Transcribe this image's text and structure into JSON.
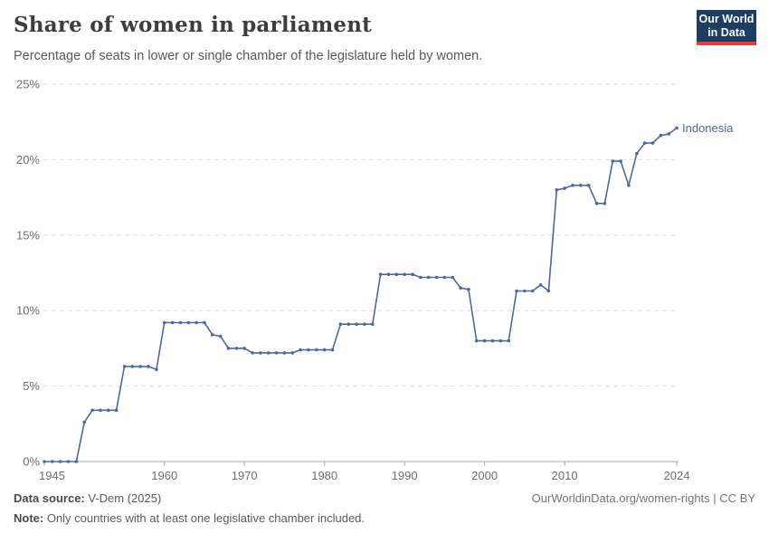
{
  "header": {
    "title": "Share of women in parliament",
    "subtitle": "Percentage of seats in lower or single chamber of the legislature held by women.",
    "logo": {
      "line1": "Our World",
      "line2": "in Data"
    }
  },
  "chart_data": {
    "type": "line",
    "title": "Share of women in parliament",
    "entity_label": "Indonesia",
    "xlabel": "",
    "ylabel": "",
    "xlim": [
      1945,
      2024
    ],
    "ylim": [
      0,
      25
    ],
    "x_ticks": [
      1945,
      1960,
      1970,
      1980,
      1990,
      2000,
      2010,
      2024
    ],
    "y_ticks": [
      0,
      5,
      10,
      15,
      20,
      25
    ],
    "y_tick_suffix": "%",
    "grid": "horizontal-dashed",
    "legend_position": "end-of-line-label",
    "line_color": "#4C6A9C",
    "x": [
      1945,
      1946,
      1947,
      1948,
      1949,
      1950,
      1951,
      1952,
      1953,
      1954,
      1955,
      1956,
      1957,
      1958,
      1959,
      1960,
      1961,
      1962,
      1963,
      1964,
      1965,
      1966,
      1967,
      1968,
      1969,
      1970,
      1971,
      1972,
      1973,
      1974,
      1975,
      1976,
      1977,
      1978,
      1979,
      1980,
      1981,
      1982,
      1983,
      1984,
      1985,
      1986,
      1987,
      1988,
      1989,
      1990,
      1991,
      1992,
      1993,
      1994,
      1995,
      1996,
      1997,
      1998,
      1999,
      2000,
      2001,
      2002,
      2003,
      2004,
      2005,
      2006,
      2007,
      2008,
      2009,
      2010,
      2011,
      2012,
      2013,
      2014,
      2015,
      2016,
      2017,
      2018,
      2019,
      2020,
      2021,
      2022,
      2023,
      2024
    ],
    "values": [
      0,
      0,
      0,
      0,
      0,
      2.6,
      3.4,
      3.4,
      3.4,
      3.4,
      6.3,
      6.3,
      6.3,
      6.3,
      6.1,
      9.2,
      9.2,
      9.2,
      9.2,
      9.2,
      9.2,
      8.4,
      8.3,
      7.5,
      7.5,
      7.5,
      7.2,
      7.2,
      7.2,
      7.2,
      7.2,
      7.2,
      7.4,
      7.4,
      7.4,
      7.4,
      7.4,
      9.1,
      9.1,
      9.1,
      9.1,
      9.1,
      12.4,
      12.4,
      12.4,
      12.4,
      12.4,
      12.2,
      12.2,
      12.2,
      12.2,
      12.2,
      11.5,
      11.4,
      8.0,
      8.0,
      8.0,
      8.0,
      8.0,
      11.3,
      11.3,
      11.3,
      11.7,
      11.3,
      18.0,
      18.1,
      18.3,
      18.3,
      18.3,
      17.1,
      17.1,
      19.9,
      19.9,
      18.3,
      20.4,
      21.1,
      21.1,
      21.6,
      21.7,
      22.1
    ]
  },
  "footer": {
    "source_label": "Data source:",
    "source_text": " V-Dem (2025)",
    "note_label": "Note:",
    "note_text": " Only countries with at least one legislative chamber included.",
    "link_text": "OurWorldinData.org/women-rights | CC BY"
  },
  "colors": {
    "line": "#4C6A9C",
    "grid": "#dedede",
    "axis": "#a9a9a9",
    "axis_text": "#6e6e6e",
    "logo_bg": "#1d3d63",
    "logo_red": "#e63e36"
  }
}
